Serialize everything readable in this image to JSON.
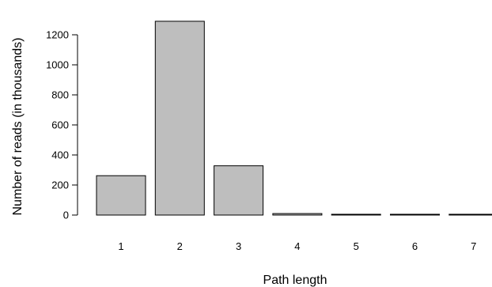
{
  "chart_data": {
    "type": "bar",
    "title": "",
    "xlabel": "Path length",
    "ylabel": "Number of reads (in thousands)",
    "categories": [
      "1",
      "2",
      "3",
      "4",
      "5",
      "6",
      "7"
    ],
    "values": [
      262,
      1290,
      328,
      10,
      3,
      2,
      1
    ],
    "ylim": [
      0,
      1300
    ],
    "yticks": [
      0,
      200,
      400,
      600,
      800,
      1000,
      1200
    ],
    "grid": false,
    "legend": "none",
    "bar_fill": "#bebebe",
    "bar_stroke": "#000000"
  }
}
